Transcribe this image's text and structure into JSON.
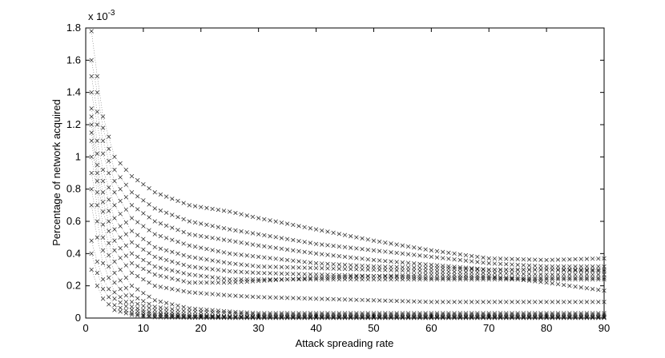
{
  "chart_data": {
    "type": "scatter",
    "xlabel": "Attack spreading rate",
    "ylabel": "Percentage of network acquired",
    "multiplier": "x 10",
    "multiplier_exponent": "-3",
    "xlim": [
      0,
      90
    ],
    "ylim": [
      0,
      0.0018
    ],
    "grid": false,
    "legend": "none",
    "marker": "x",
    "x_ticks": [
      "0",
      "10",
      "20",
      "30",
      "40",
      "50",
      "60",
      "70",
      "80",
      "90"
    ],
    "y_ticks": [
      "0",
      "0.2",
      "0.4",
      "0.6",
      "0.8",
      "1",
      "1.2",
      "1.4",
      "1.6",
      "1.8"
    ],
    "series_points": [
      1,
      2,
      3,
      4,
      5,
      6,
      8,
      10,
      12,
      15,
      18,
      21,
      25,
      30,
      35,
      40,
      45,
      50,
      55,
      60,
      65,
      70,
      75,
      80,
      85,
      90
    ],
    "series": [
      {
        "x": [
          1,
          2,
          3,
          5,
          8,
          12,
          18,
          25,
          30,
          40,
          50,
          60,
          70,
          80,
          90
        ],
        "y": [
          0.00178,
          0.0015,
          0.00125,
          0.001,
          0.00088,
          0.00078,
          0.0007,
          0.00066,
          0.00062,
          0.00055,
          0.00048,
          0.00042,
          0.00037,
          0.00036,
          0.00037
        ]
      },
      {
        "x": [
          1,
          2,
          3,
          5,
          8,
          12,
          18,
          25,
          30,
          40,
          50,
          60,
          70,
          80,
          90
        ],
        "y": [
          0.0016,
          0.0014,
          0.00118,
          0.00092,
          0.00078,
          0.00068,
          0.0006,
          0.00055,
          0.00052,
          0.00046,
          0.00042,
          0.00038,
          0.00034,
          0.00032,
          0.00032
        ]
      },
      {
        "x": [
          1,
          2,
          3,
          5,
          8,
          12,
          18,
          25,
          30,
          40,
          50,
          60,
          70,
          80,
          90
        ],
        "y": [
          0.0015,
          0.00128,
          0.0011,
          0.00085,
          0.0007,
          0.0006,
          0.00052,
          0.00048,
          0.00045,
          0.0004,
          0.00036,
          0.00033,
          0.0003,
          0.0003,
          0.0003
        ]
      },
      {
        "x": [
          1,
          2,
          3,
          5,
          8,
          12,
          18,
          25,
          30,
          40,
          50,
          60,
          70,
          80,
          90
        ],
        "y": [
          0.0014,
          0.0012,
          0.00102,
          0.00078,
          0.00062,
          0.00052,
          0.00045,
          0.0004,
          0.00038,
          0.00034,
          0.00032,
          0.00031,
          0.0003,
          0.0003,
          0.00029
        ]
      },
      {
        "x": [
          1,
          2,
          3,
          5,
          8,
          12,
          18,
          25,
          30,
          40,
          50,
          60,
          70,
          80,
          90
        ],
        "y": [
          0.0013,
          0.0011,
          0.00092,
          0.0007,
          0.00054,
          0.00044,
          0.00038,
          0.00034,
          0.00032,
          0.00031,
          0.0003,
          0.00029,
          0.00028,
          0.00027,
          0.00027
        ]
      },
      {
        "x": [
          1,
          2,
          3,
          5,
          8,
          12,
          18,
          25,
          30,
          40,
          50,
          60,
          70,
          80,
          90
        ],
        "y": [
          0.00125,
          0.00102,
          0.00085,
          0.00062,
          0.00047,
          0.00038,
          0.00032,
          0.00029,
          0.00028,
          0.00027,
          0.00026,
          0.00025,
          0.00025,
          0.00025,
          0.00025
        ]
      },
      {
        "x": [
          1,
          2,
          3,
          5,
          8,
          12,
          18,
          25,
          30,
          40,
          50,
          60,
          70,
          80,
          90
        ],
        "y": [
          0.0012,
          0.00095,
          0.00078,
          0.00055,
          0.0004,
          0.00032,
          0.00027,
          0.00024,
          0.00024,
          0.00024,
          0.00024,
          0.00024,
          0.00024,
          0.00024,
          0.00024
        ]
      },
      {
        "x": [
          1,
          2,
          3,
          5,
          8,
          12,
          18,
          25,
          30,
          40,
          50,
          60,
          70,
          80,
          90
        ],
        "y": [
          0.00115,
          0.0009,
          0.00072,
          0.00048,
          0.00034,
          0.00027,
          0.00022,
          0.00022,
          0.00023,
          0.00025,
          0.00026,
          0.00027,
          0.00026,
          0.00022,
          0.00017
        ]
      },
      {
        "x": [
          1,
          2,
          3,
          5,
          8,
          12,
          18,
          25,
          30,
          40,
          50,
          60,
          70,
          80,
          90
        ],
        "y": [
          0.0011,
          0.00085,
          0.00066,
          0.00042,
          0.00028,
          0.0002,
          0.00016,
          0.00014,
          0.00013,
          0.00012,
          0.00011,
          0.0001,
          0.0001,
          0.0001,
          0.0001
        ]
      },
      {
        "x": [
          1,
          2,
          3,
          5,
          8,
          12,
          18,
          25,
          30,
          40,
          50,
          60,
          70,
          80,
          90
        ],
        "y": [
          0.001,
          0.00078,
          0.00058,
          0.00035,
          0.0002,
          0.00011,
          6e-05,
          4e-05,
          3e-05,
          3e-05,
          3e-05,
          3e-05,
          3e-05,
          3e-05,
          3e-05
        ]
      },
      {
        "x": [
          1,
          2,
          3,
          5,
          8,
          12,
          18,
          25,
          30,
          40,
          50,
          60,
          70,
          80,
          90
        ],
        "y": [
          0.0009,
          0.0007,
          0.0005,
          0.00028,
          0.00014,
          7e-05,
          4e-05,
          3e-05,
          2e-05,
          2e-05,
          2e-05,
          2e-05,
          2e-05,
          2e-05,
          2e-05
        ]
      },
      {
        "x": [
          1,
          2,
          3,
          5,
          8,
          12,
          18,
          25,
          30,
          40,
          50,
          60,
          70,
          80,
          90
        ],
        "y": [
          0.0008,
          0.0006,
          0.00042,
          0.00022,
          0.0001,
          5e-05,
          2e-05,
          1e-05,
          1e-05,
          1e-05,
          1e-05,
          1e-05,
          1e-05,
          1e-05,
          1e-05
        ]
      },
      {
        "x": [
          1,
          2,
          3,
          5,
          8,
          12,
          18,
          25,
          30,
          40,
          50,
          60,
          70,
          80,
          90
        ],
        "y": [
          0.0007,
          0.0005,
          0.00034,
          0.00016,
          7e-05,
          3e-05,
          1e-05,
          1e-05,
          5e-06,
          5e-06,
          5e-06,
          5e-06,
          5e-06,
          5e-06,
          5e-06
        ]
      },
      {
        "x": [
          1,
          2,
          3,
          5,
          8,
          12,
          18,
          25,
          30,
          40,
          50,
          60,
          70,
          80,
          90
        ],
        "y": [
          0.00048,
          0.00035,
          0.00024,
          0.00012,
          5e-05,
          2e-05,
          1e-05,
          5e-06,
          3e-06,
          3e-06,
          3e-06,
          3e-06,
          3e-06,
          3e-06,
          3e-06
        ]
      },
      {
        "x": [
          1,
          2,
          3,
          5,
          8,
          12,
          18,
          25,
          30,
          40,
          50,
          60,
          70,
          80,
          90
        ],
        "y": [
          0.0004,
          0.00028,
          0.00018,
          8e-05,
          3e-05,
          1e-05,
          5e-06,
          3e-06,
          2e-06,
          2e-06,
          2e-06,
          2e-06,
          2e-06,
          2e-06,
          2e-06
        ]
      },
      {
        "x": [
          1,
          2,
          3,
          5,
          8,
          12,
          18,
          25,
          30,
          40,
          50,
          60,
          70,
          80,
          90
        ],
        "y": [
          0.0003,
          0.0002,
          0.00012,
          5e-05,
          2e-05,
          5e-06,
          2e-06,
          1e-06,
          1e-06,
          1e-06,
          1e-06,
          1e-06,
          1e-06,
          1e-06,
          1e-06
        ]
      }
    ]
  }
}
